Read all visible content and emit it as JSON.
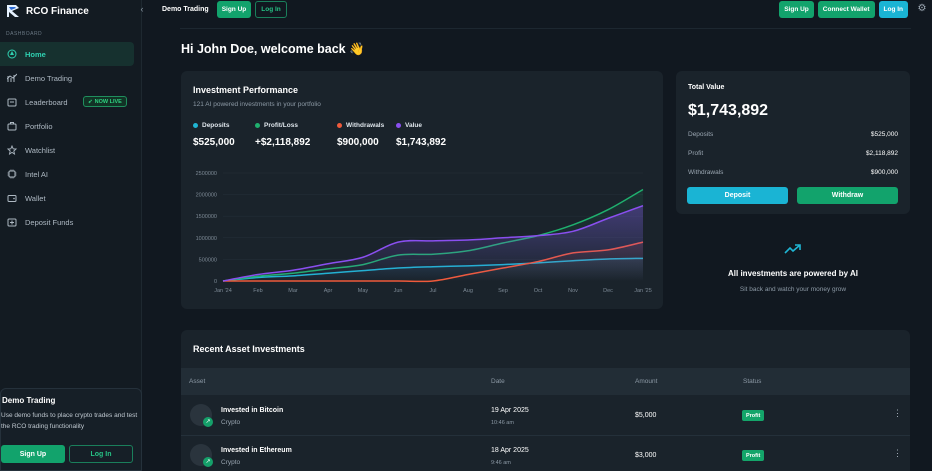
{
  "brand": {
    "name": "RCO Finance"
  },
  "sidebar": {
    "section_label": "DASHBOARD",
    "items": [
      {
        "label": "Home",
        "icon": "home-icon",
        "active": true
      },
      {
        "label": "Demo Trading",
        "icon": "chart-icon"
      },
      {
        "label": "Leaderboard",
        "icon": "leaderboard-icon",
        "badge": "NOW LIVE"
      },
      {
        "label": "Portfolio",
        "icon": "portfolio-icon"
      },
      {
        "label": "Watchlist",
        "icon": "watchlist-icon"
      },
      {
        "label": "Intel AI",
        "icon": "ai-icon"
      },
      {
        "label": "Wallet",
        "icon": "wallet-icon"
      },
      {
        "label": "Deposit Funds",
        "icon": "deposit-icon"
      }
    ],
    "demo_card": {
      "title": "Demo Trading",
      "text": "Use demo funds to place crypto trades and test the RCO trading functionality",
      "signup": "Sign Up",
      "login": "Log In"
    }
  },
  "topbar": {
    "title": "Demo Trading",
    "signup": "Sign Up",
    "login": "Log In",
    "right_signup": "Sign Up",
    "connect_wallet": "Connect Wallet",
    "right_login": "Log In"
  },
  "welcome": "Hi John Doe, welcome back 👋",
  "performance": {
    "title": "Investment Performance",
    "subtitle": "121 AI powered investments in your portfolio",
    "stats": [
      {
        "label": "Deposits",
        "value": "$525,000",
        "color": "#1fb5d3"
      },
      {
        "label": "Profit/Loss",
        "value": "+$2,118,892",
        "color": "#1fb06e"
      },
      {
        "label": "Withdrawals",
        "value": "$900,000",
        "color": "#ef5a3b"
      },
      {
        "label": "Value",
        "value": "$1,743,892",
        "color": "#8a4ff0"
      }
    ]
  },
  "chart_data": {
    "type": "area",
    "x": [
      "Jan '24",
      "Feb",
      "Mar",
      "Apr",
      "May",
      "Jun",
      "Jul",
      "Aug",
      "Sep",
      "Oct",
      "Nov",
      "Dec",
      "Jan '25"
    ],
    "ylim": [
      0,
      2500000
    ],
    "yticks": [
      "0",
      "500000",
      "1000000",
      "1500000",
      "2000000",
      "2500000"
    ],
    "grid": true,
    "series": [
      {
        "name": "Deposits",
        "color": "#1fb5d3",
        "values": [
          0,
          80000,
          120000,
          180000,
          240000,
          300000,
          330000,
          350000,
          380000,
          420000,
          470000,
          510000,
          525000
        ]
      },
      {
        "name": "Profit/Loss",
        "color": "#1fb06e",
        "values": [
          0,
          110000,
          180000,
          280000,
          380000,
          600000,
          620000,
          700000,
          880000,
          1050000,
          1300000,
          1650000,
          2118892
        ]
      },
      {
        "name": "Withdrawals",
        "color": "#ef5a3b",
        "values": [
          0,
          0,
          0,
          0,
          0,
          0,
          0,
          150000,
          300000,
          450000,
          650000,
          720000,
          900000
        ]
      },
      {
        "name": "Value",
        "color": "#8a4ff0",
        "values": [
          0,
          150000,
          250000,
          400000,
          550000,
          900000,
          930000,
          950000,
          1000000,
          1050000,
          1150000,
          1450000,
          1743892
        ]
      }
    ]
  },
  "total": {
    "label": "Total Value",
    "value": "$1,743,892",
    "rows": [
      {
        "k": "Deposits",
        "v": "$525,000"
      },
      {
        "k": "Profit",
        "v": "$2,118,892"
      },
      {
        "k": "Withdrawals",
        "v": "$900,000"
      }
    ],
    "deposit": "Deposit",
    "withdraw": "Withdraw"
  },
  "ai": {
    "title": "All investments are powered by AI",
    "subtitle": "Sit back and watch your money grow"
  },
  "recent": {
    "title": "Recent Asset Investments",
    "columns": {
      "asset": "Asset",
      "date": "Date",
      "amount": "Amount",
      "status": "Status"
    },
    "rows": [
      {
        "name": "Invested in Bitcoin",
        "category": "Crypto",
        "date": "19 Apr 2025",
        "time": "10:46 am",
        "amount": "$5,000",
        "status": "Profit"
      },
      {
        "name": "Invested in Ethereum",
        "category": "Crypto",
        "date": "18 Apr 2025",
        "time": "9:46 am",
        "amount": "$3,000",
        "status": "Profit"
      }
    ]
  }
}
